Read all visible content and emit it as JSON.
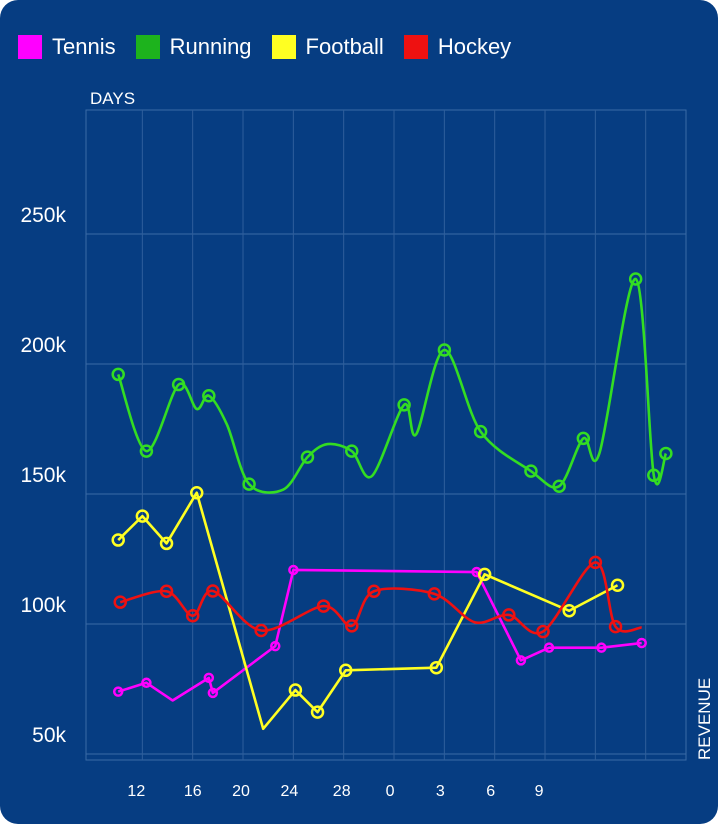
{
  "chart_data": {
    "type": "line",
    "title": "",
    "xlabel": "DAYS",
    "ylabel": "REVENUE",
    "x_tick_labels": [
      "12",
      "16",
      "20",
      "24",
      "28",
      "0",
      "3",
      "6",
      "9"
    ],
    "y_tick_labels": [
      "50k",
      "100k",
      "150k",
      "200k",
      "250k"
    ],
    "ylim": [
      40000,
      290000
    ],
    "grid": true,
    "legend_position": "top-left",
    "series": [
      {
        "name": "Tennis",
        "color": "#ff00ff",
        "points": [
          {
            "x": 11.1,
            "y": 66300,
            "marker": true
          },
          {
            "x": 12.5,
            "y": 69700,
            "marker": true
          },
          {
            "x": 13.8,
            "y": 62900,
            "marker": false
          },
          {
            "x": 15.6,
            "y": 71600,
            "marker": true
          },
          {
            "x": 15.8,
            "y": 65800,
            "marker": true
          },
          {
            "x": 18.9,
            "y": 83800,
            "marker": true
          },
          {
            "x": 19.8,
            "y": 113100,
            "marker": true
          },
          {
            "x": 28.9,
            "y": 112300,
            "marker": true
          },
          {
            "x": 31.1,
            "y": 78300,
            "marker": true
          },
          {
            "x": 32.5,
            "y": 83200,
            "marker": true
          },
          {
            "x": 35.1,
            "y": 83200,
            "marker": true
          },
          {
            "x": 37.1,
            "y": 85000,
            "marker": true
          }
        ]
      },
      {
        "name": "Running",
        "color": "#33dd22",
        "points": [
          {
            "x": 11.1,
            "y": 188300,
            "marker": true
          },
          {
            "x": 12.5,
            "y": 158800,
            "marker": true
          },
          {
            "x": 14.1,
            "y": 184400,
            "marker": true
          },
          {
            "x": 15.0,
            "y": 175000,
            "marker": false
          },
          {
            "x": 15.6,
            "y": 180100,
            "marker": true
          },
          {
            "x": 16.5,
            "y": 169000,
            "marker": false
          },
          {
            "x": 17.6,
            "y": 146100,
            "marker": true
          },
          {
            "x": 19.3,
            "y": 144000,
            "marker": false
          },
          {
            "x": 20.5,
            "y": 156500,
            "marker": true
          },
          {
            "x": 21.5,
            "y": 161500,
            "marker": false
          },
          {
            "x": 22.7,
            "y": 158800,
            "marker": true
          },
          {
            "x": 23.7,
            "y": 149200,
            "marker": false
          },
          {
            "x": 25.3,
            "y": 176600,
            "marker": true
          },
          {
            "x": 25.9,
            "y": 165300,
            "marker": false
          },
          {
            "x": 27.3,
            "y": 197700,
            "marker": true
          },
          {
            "x": 29.1,
            "y": 166300,
            "marker": true
          },
          {
            "x": 31.6,
            "y": 151100,
            "marker": true
          },
          {
            "x": 33.0,
            "y": 145300,
            "marker": true
          },
          {
            "x": 34.2,
            "y": 163700,
            "marker": true
          },
          {
            "x": 35.0,
            "y": 158000,
            "marker": false
          },
          {
            "x": 36.8,
            "y": 225000,
            "marker": true
          },
          {
            "x": 37.7,
            "y": 149500,
            "marker": true
          },
          {
            "x": 38.3,
            "y": 157900,
            "marker": true
          }
        ]
      },
      {
        "name": "Football",
        "color": "#ffff22",
        "points": [
          {
            "x": 11.1,
            "y": 124600,
            "marker": true
          },
          {
            "x": 12.3,
            "y": 133800,
            "marker": true
          },
          {
            "x": 13.5,
            "y": 123300,
            "marker": true
          },
          {
            "x": 15.0,
            "y": 142800,
            "marker": true
          },
          {
            "x": 18.3,
            "y": 52000,
            "marker": false
          },
          {
            "x": 19.9,
            "y": 66900,
            "marker": true
          },
          {
            "x": 21.0,
            "y": 58400,
            "marker": true
          },
          {
            "x": 22.4,
            "y": 74500,
            "marker": true
          },
          {
            "x": 26.9,
            "y": 75500,
            "marker": true
          },
          {
            "x": 29.3,
            "y": 111400,
            "marker": true
          },
          {
            "x": 33.5,
            "y": 97400,
            "marker": true
          },
          {
            "x": 35.9,
            "y": 107200,
            "marker": true
          }
        ]
      },
      {
        "name": "Hockey",
        "color": "#ee1111",
        "points": [
          {
            "x": 11.2,
            "y": 100700,
            "marker": true
          },
          {
            "x": 13.5,
            "y": 104900,
            "marker": true
          },
          {
            "x": 14.8,
            "y": 95500,
            "marker": true
          },
          {
            "x": 15.8,
            "y": 105000,
            "marker": true
          },
          {
            "x": 18.2,
            "y": 89800,
            "marker": true
          },
          {
            "x": 21.3,
            "y": 99200,
            "marker": true
          },
          {
            "x": 22.7,
            "y": 91600,
            "marker": true
          },
          {
            "x": 23.8,
            "y": 104900,
            "marker": true
          },
          {
            "x": 26.8,
            "y": 103900,
            "marker": true
          },
          {
            "x": 28.8,
            "y": 93000,
            "marker": false
          },
          {
            "x": 30.5,
            "y": 95800,
            "marker": true
          },
          {
            "x": 32.2,
            "y": 89400,
            "marker": true
          },
          {
            "x": 34.8,
            "y": 116000,
            "marker": true
          },
          {
            "x": 35.8,
            "y": 91300,
            "marker": true
          },
          {
            "x": 37.1,
            "y": 91000,
            "marker": false
          }
        ]
      }
    ]
  }
}
